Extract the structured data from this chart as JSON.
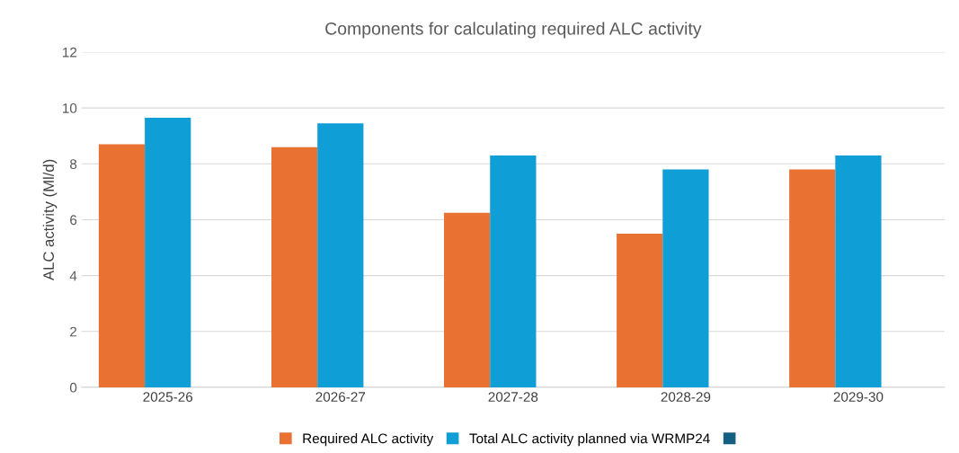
{
  "chart_data": {
    "type": "bar",
    "title": "Components for calculating required ALC activity",
    "ylabel": "ALC activity (Ml/d)",
    "categories": [
      "2025-26",
      "2026-27",
      "2027-28",
      "2028-29",
      "2029-30"
    ],
    "series": [
      {
        "name": "Required ALC activity",
        "color": "#e97132",
        "values": [
          8.7,
          8.6,
          6.25,
          5.5,
          7.8
        ]
      },
      {
        "name": "Total ALC activity planned via WRMP24",
        "color": "#0f9ed5",
        "values": [
          9.65,
          9.45,
          8.3,
          7.8,
          8.3
        ]
      },
      {
        "color": "#156082",
        "values": [
          null,
          null,
          null,
          null,
          null
        ]
      }
    ],
    "ylim": [
      0,
      12
    ],
    "yticks": [
      0,
      2,
      4,
      6,
      8,
      10,
      12
    ],
    "grid": "y",
    "legend": "bottom"
  }
}
